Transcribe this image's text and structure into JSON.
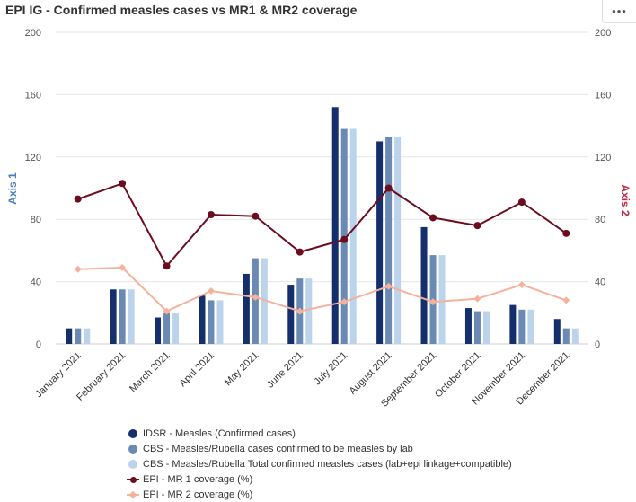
{
  "header": {
    "title": "EPI IG - Confirmed measles cases vs MR1 & MR2 coverage",
    "menu_label": "•••",
    "menu_icon": "more-horizontal-icon"
  },
  "chart_data": {
    "type": "bar",
    "categories": [
      "January 2021",
      "February 2021",
      "March 2021",
      "April 2021",
      "May 2021",
      "June 2021",
      "July 2021",
      "August 2021",
      "September 2021",
      "October 2021",
      "November 2021",
      "December 2021"
    ],
    "y_left": {
      "label": "Axis 1",
      "ticks": [
        0,
        40,
        80,
        120,
        160,
        200
      ],
      "range": [
        0,
        200
      ],
      "color": "#4e7fb8"
    },
    "y_right": {
      "label": "Axis 2",
      "ticks": [
        0,
        40,
        80,
        120,
        160,
        200
      ],
      "range": [
        0,
        200
      ],
      "color": "#c0293f"
    },
    "grid": true,
    "legend_position": "bottom",
    "series": [
      {
        "name": "IDSR - Measles (Confirmed cases)",
        "kind": "bar",
        "axis": "left",
        "color": "#142f6b",
        "values": [
          10,
          35,
          17,
          31,
          45,
          38,
          152,
          130,
          75,
          23,
          25,
          16
        ]
      },
      {
        "name": "CBS - Measles/Rubella cases confirmed to be measles by lab",
        "kind": "bar",
        "axis": "left",
        "color": "#6a8ab4",
        "values": [
          10,
          35,
          20,
          28,
          55,
          42,
          138,
          133,
          57,
          21,
          22,
          10
        ]
      },
      {
        "name": "CBS - Measles/Rubella Total confirmed measles cases (lab+epi linkage+compatible)",
        "kind": "bar",
        "axis": "left",
        "color": "#bcd3ec",
        "values": [
          10,
          35,
          20,
          28,
          55,
          42,
          138,
          133,
          57,
          21,
          22,
          10
        ]
      },
      {
        "name": "EPI - MR 1 coverage (%)",
        "kind": "line",
        "marker": "circle",
        "axis": "right",
        "color": "#6b0d1f",
        "values": [
          93,
          103,
          50,
          83,
          82,
          59,
          67,
          100,
          81,
          76,
          91,
          71
        ]
      },
      {
        "name": "EPI - MR 2 coverage (%)",
        "kind": "line",
        "marker": "diamond",
        "axis": "right",
        "color": "#f5b19a",
        "values": [
          48,
          49,
          21,
          34,
          30,
          21,
          27,
          37,
          27,
          29,
          38,
          28
        ]
      }
    ]
  }
}
